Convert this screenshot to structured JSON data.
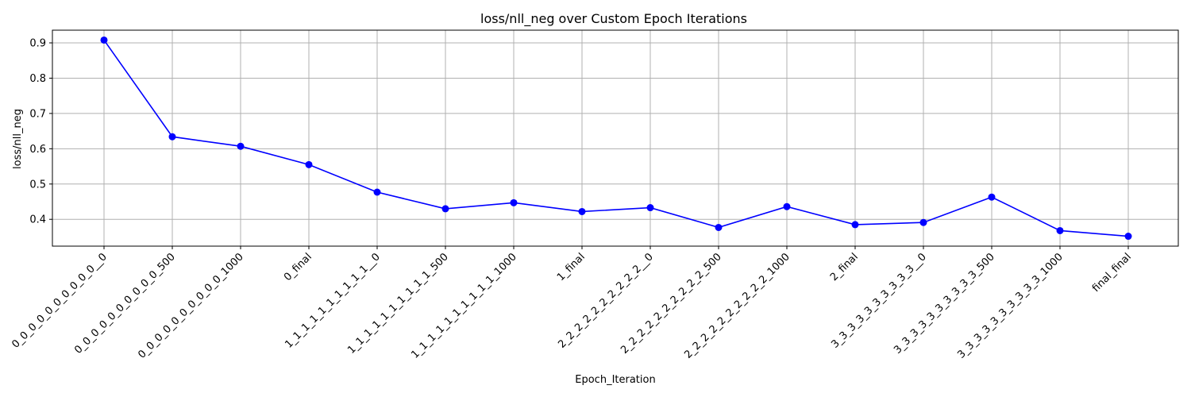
{
  "chart_data": {
    "type": "line",
    "title": "loss/nll_neg over Custom Epoch Iterations",
    "xlabel": "Epoch_Iteration",
    "ylabel": "loss/nll_neg",
    "categories": [
      "0_0_0_0_0_0_0_0_0_0__0",
      "0_0_0_0_0_0_0_0_0_0_500",
      "0_0_0_0_0_0_0_0_0_0_1000",
      "0_final",
      "1_1_1_1_1_1_1_1_1_1__0",
      "1_1_1_1_1_1_1_1_1_1_500",
      "1_1_1_1_1_1_1_1_1_1_1000",
      "1_final",
      "2_2_2_2_2_2_2_2_2_2__0",
      "2_2_2_2_2_2_2_2_2_2_500",
      "2_2_2_2_2_2_2_2_2_2_1000",
      "2_final",
      "3_3_3_3_3_3_3_3_3_3__0",
      "3_3_3_3_3_3_3_3_3_3_500",
      "3_3_3_3_3_3_3_3_3_3_1000",
      "final_final"
    ],
    "series": [
      {
        "values": [
          0.908,
          0.634,
          0.607,
          0.555,
          0.477,
          0.43,
          0.447,
          0.422,
          0.433,
          0.377,
          0.436,
          0.385,
          0.391,
          0.463,
          0.368,
          0.352
        ],
        "color": "#0000ff",
        "marker": "circle"
      }
    ],
    "ylim": [
      0.324,
      0.936
    ],
    "yticks": [
      0.4,
      0.5,
      0.6,
      0.7,
      0.8,
      0.9
    ],
    "ytick_labels": [
      "0.4",
      "0.5",
      "0.6",
      "0.7",
      "0.8",
      "0.9"
    ],
    "grid": true,
    "legend": "none"
  }
}
